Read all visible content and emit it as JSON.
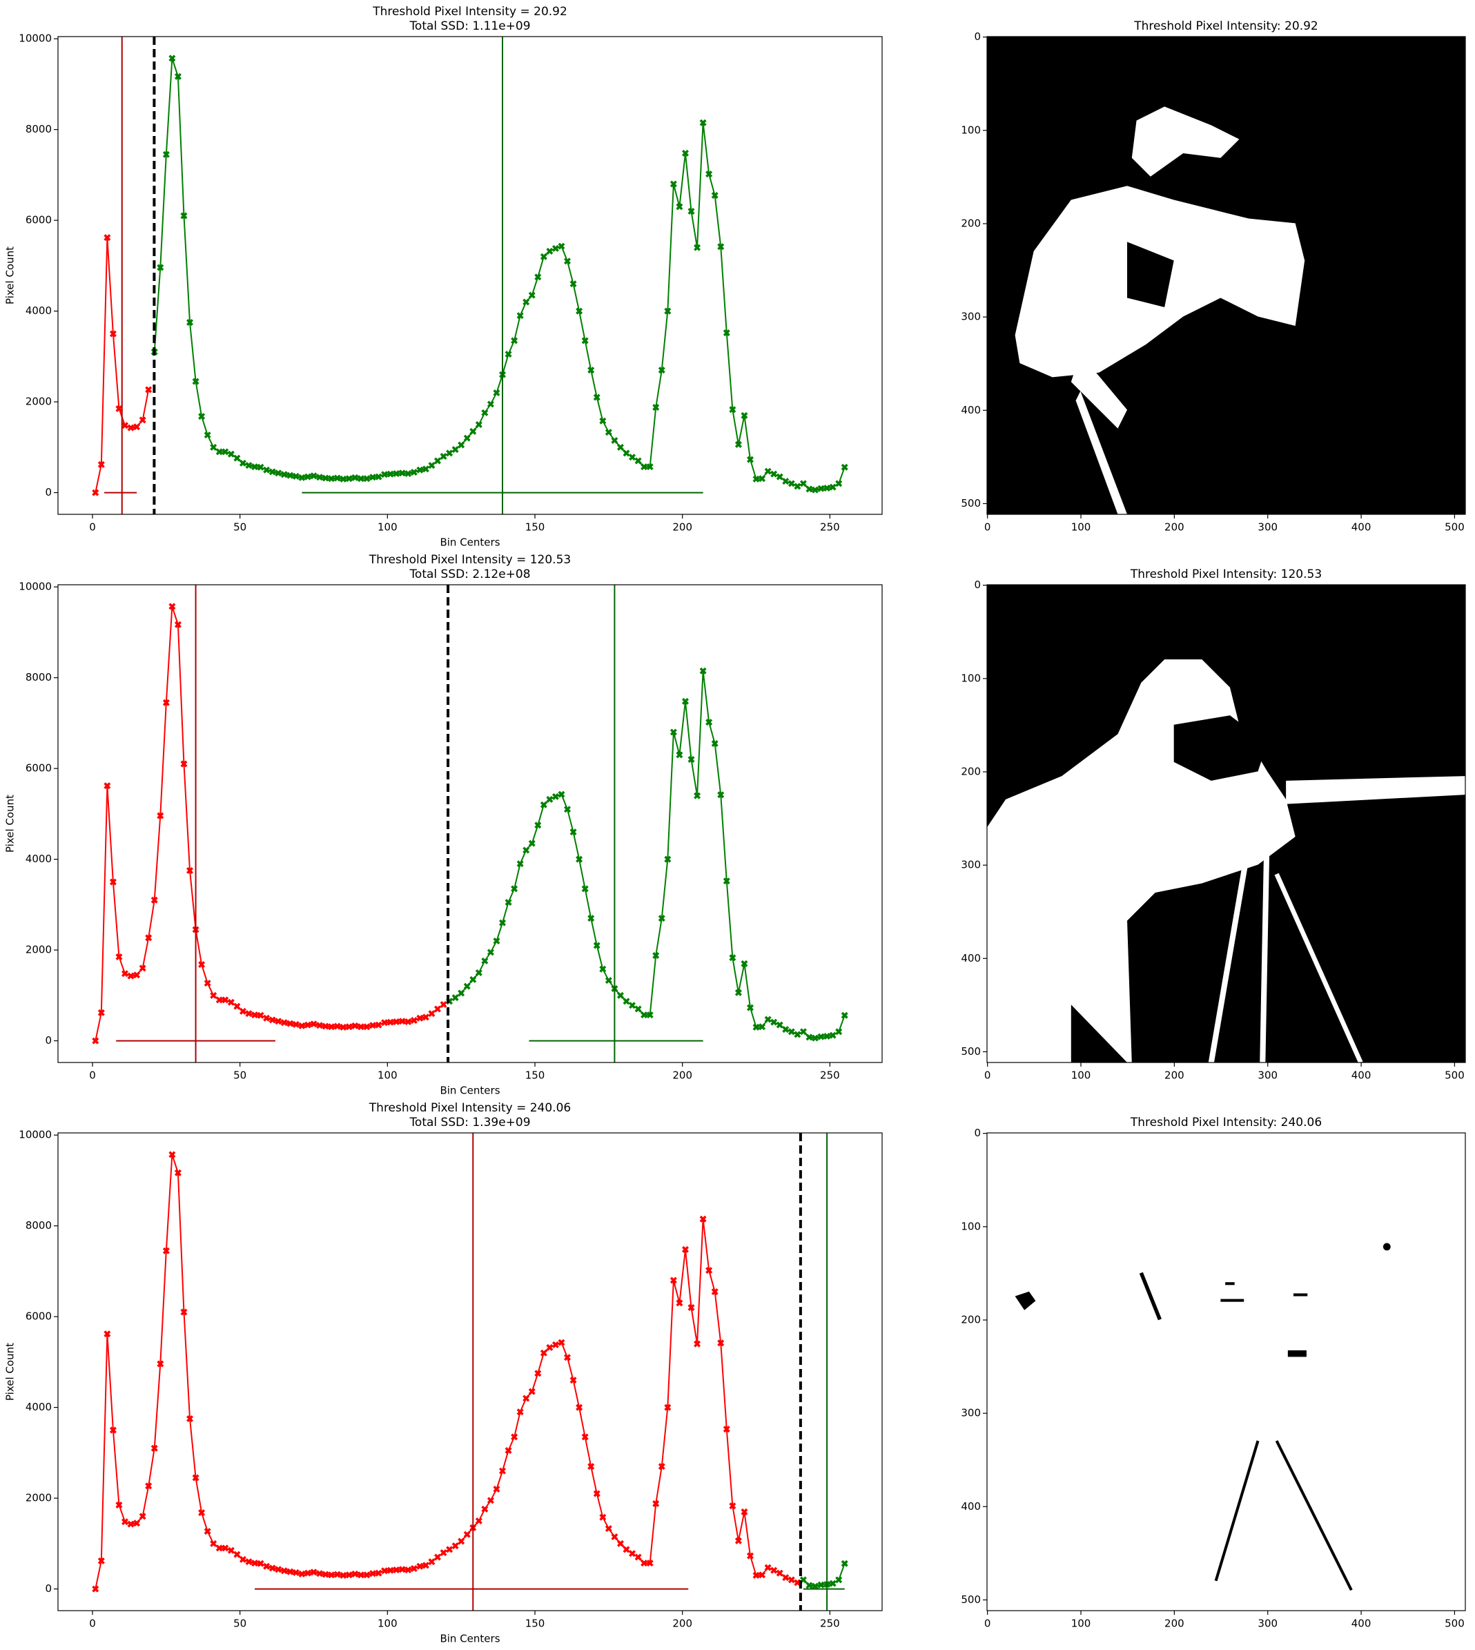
{
  "chart_data": [
    {
      "type": "line",
      "title": "Threshold Pixel Intensity = 20.92",
      "subtitle": "Total SSD: 1.11e+09",
      "xlabel": "Bin Centers",
      "ylabel": "Pixel Count",
      "x": [
        1,
        3,
        5,
        7,
        9,
        11,
        13,
        15,
        17,
        19,
        21,
        23,
        25,
        27,
        29,
        31,
        33,
        35,
        37,
        39,
        41,
        43,
        45,
        47,
        49,
        51,
        53,
        55,
        57,
        59,
        61,
        63,
        65,
        67,
        69,
        71,
        73,
        75,
        77,
        79,
        81,
        83,
        85,
        87,
        89,
        91,
        93,
        95,
        97,
        99,
        101,
        103,
        105,
        107,
        109,
        111,
        113,
        115,
        117,
        119,
        121,
        123,
        125,
        127,
        129,
        131,
        133,
        135,
        137,
        139,
        141,
        143,
        145,
        147,
        149,
        151,
        153,
        155,
        157,
        159,
        161,
        163,
        165,
        167,
        169,
        171,
        173,
        175,
        177,
        179,
        181,
        183,
        185,
        187,
        189,
        191,
        193,
        195,
        197,
        199,
        201,
        203,
        205,
        207,
        209,
        211,
        213,
        215,
        217,
        219,
        221,
        223,
        225,
        227,
        229,
        231,
        233,
        235,
        237,
        239,
        241,
        243,
        245,
        247,
        249,
        251,
        253,
        255
      ],
      "values": [
        0,
        620,
        5620,
        3500,
        1850,
        1480,
        1430,
        1450,
        1600,
        2270,
        3100,
        4960,
        7450,
        9570,
        9170,
        6100,
        3750,
        2450,
        1680,
        1270,
        1000,
        900,
        900,
        850,
        760,
        650,
        600,
        570,
        560,
        500,
        460,
        430,
        400,
        380,
        360,
        330,
        350,
        370,
        340,
        320,
        310,
        320,
        300,
        310,
        330,
        310,
        310,
        340,
        350,
        400,
        410,
        420,
        430,
        420,
        450,
        500,
        520,
        600,
        700,
        800,
        870,
        950,
        1050,
        1200,
        1350,
        1500,
        1760,
        1950,
        2200,
        2600,
        3050,
        3350,
        3900,
        4200,
        4350,
        4750,
        5200,
        5320,
        5380,
        5430,
        5100,
        4600,
        4000,
        3350,
        2700,
        2100,
        1580,
        1330,
        1150,
        1000,
        870,
        780,
        700,
        570,
        570,
        1880,
        2700,
        4000,
        6800,
        6300,
        7480,
        6200,
        5400,
        8150,
        7020,
        6550,
        5420,
        3520,
        1830,
        1060,
        1700,
        730,
        300,
        310,
        470,
        410,
        350,
        250,
        200,
        140,
        200,
        80,
        60,
        90,
        100,
        120,
        200,
        560
      ],
      "threshold": 20.92,
      "below_color": "#ff0000",
      "above_color": "#008000",
      "classes": [
        {
          "color": "#b00000",
          "mean": 10,
          "span": [
            4,
            15
          ]
        },
        {
          "color": "#006400",
          "mean": 139,
          "span": [
            71,
            207
          ]
        }
      ],
      "xlim": [
        -11.7,
        267.7
      ],
      "ylim": [
        -478,
        10048
      ],
      "xticks": [
        0,
        50,
        100,
        150,
        200,
        250
      ],
      "yticks": [
        0,
        2000,
        4000,
        6000,
        8000,
        10000
      ]
    },
    {
      "type": "image",
      "title": "Threshold Pixel Intensity: 20.92",
      "xlim": [
        -0.5,
        511.5
      ],
      "ylim": [
        511.5,
        -0.5
      ],
      "xticks": [
        0,
        100,
        200,
        300,
        400,
        500
      ],
      "yticks": [
        0,
        100,
        200,
        300,
        400,
        500
      ]
    },
    {
      "type": "line",
      "title": "Threshold Pixel Intensity = 120.53",
      "subtitle": "Total SSD: 2.12e+08",
      "xlabel": "Bin Centers",
      "ylabel": "Pixel Count",
      "x": [
        1,
        3,
        5,
        7,
        9,
        11,
        13,
        15,
        17,
        19,
        21,
        23,
        25,
        27,
        29,
        31,
        33,
        35,
        37,
        39,
        41,
        43,
        45,
        47,
        49,
        51,
        53,
        55,
        57,
        59,
        61,
        63,
        65,
        67,
        69,
        71,
        73,
        75,
        77,
        79,
        81,
        83,
        85,
        87,
        89,
        91,
        93,
        95,
        97,
        99,
        101,
        103,
        105,
        107,
        109,
        111,
        113,
        115,
        117,
        119,
        121,
        123,
        125,
        127,
        129,
        131,
        133,
        135,
        137,
        139,
        141,
        143,
        145,
        147,
        149,
        151,
        153,
        155,
        157,
        159,
        161,
        163,
        165,
        167,
        169,
        171,
        173,
        175,
        177,
        179,
        181,
        183,
        185,
        187,
        189,
        191,
        193,
        195,
        197,
        199,
        201,
        203,
        205,
        207,
        209,
        211,
        213,
        215,
        217,
        219,
        221,
        223,
        225,
        227,
        229,
        231,
        233,
        235,
        237,
        239,
        241,
        243,
        245,
        247,
        249,
        251,
        253,
        255
      ],
      "values": [
        0,
        620,
        5620,
        3500,
        1850,
        1480,
        1430,
        1450,
        1600,
        2270,
        3100,
        4960,
        7450,
        9570,
        9170,
        6100,
        3750,
        2450,
        1680,
        1270,
        1000,
        900,
        900,
        850,
        760,
        650,
        600,
        570,
        560,
        500,
        460,
        430,
        400,
        380,
        360,
        330,
        350,
        370,
        340,
        320,
        310,
        320,
        300,
        310,
        330,
        310,
        310,
        340,
        350,
        400,
        410,
        420,
        430,
        420,
        450,
        500,
        520,
        600,
        700,
        800,
        870,
        950,
        1050,
        1200,
        1350,
        1500,
        1760,
        1950,
        2200,
        2600,
        3050,
        3350,
        3900,
        4200,
        4350,
        4750,
        5200,
        5320,
        5380,
        5430,
        5100,
        4600,
        4000,
        3350,
        2700,
        2100,
        1580,
        1330,
        1150,
        1000,
        870,
        780,
        700,
        570,
        570,
        1880,
        2700,
        4000,
        6800,
        6300,
        7480,
        6200,
        5400,
        8150,
        7020,
        6550,
        5420,
        3520,
        1830,
        1060,
        1700,
        730,
        300,
        310,
        470,
        410,
        350,
        250,
        200,
        140,
        200,
        80,
        60,
        90,
        100,
        120,
        200,
        560
      ],
      "threshold": 120.53,
      "below_color": "#ff0000",
      "above_color": "#008000",
      "classes": [
        {
          "color": "#b00000",
          "mean": 35,
          "span": [
            8,
            62
          ]
        },
        {
          "color": "#006400",
          "mean": 177,
          "span": [
            148,
            207
          ]
        }
      ],
      "xlim": [
        -11.7,
        267.7
      ],
      "ylim": [
        -478,
        10048
      ],
      "xticks": [
        0,
        50,
        100,
        150,
        200,
        250
      ],
      "yticks": [
        0,
        2000,
        4000,
        6000,
        8000,
        10000
      ]
    },
    {
      "type": "image",
      "title": "Threshold Pixel Intensity: 120.53",
      "xlim": [
        -0.5,
        511.5
      ],
      "ylim": [
        511.5,
        -0.5
      ],
      "xticks": [
        0,
        100,
        200,
        300,
        400,
        500
      ],
      "yticks": [
        0,
        100,
        200,
        300,
        400,
        500
      ]
    },
    {
      "type": "line",
      "title": "Threshold Pixel Intensity = 240.06",
      "subtitle": "Total SSD: 1.39e+09",
      "xlabel": "Bin Centers",
      "ylabel": "Pixel Count",
      "x": [
        1,
        3,
        5,
        7,
        9,
        11,
        13,
        15,
        17,
        19,
        21,
        23,
        25,
        27,
        29,
        31,
        33,
        35,
        37,
        39,
        41,
        43,
        45,
        47,
        49,
        51,
        53,
        55,
        57,
        59,
        61,
        63,
        65,
        67,
        69,
        71,
        73,
        75,
        77,
        79,
        81,
        83,
        85,
        87,
        89,
        91,
        93,
        95,
        97,
        99,
        101,
        103,
        105,
        107,
        109,
        111,
        113,
        115,
        117,
        119,
        121,
        123,
        125,
        127,
        129,
        131,
        133,
        135,
        137,
        139,
        141,
        143,
        145,
        147,
        149,
        151,
        153,
        155,
        157,
        159,
        161,
        163,
        165,
        167,
        169,
        171,
        173,
        175,
        177,
        179,
        181,
        183,
        185,
        187,
        189,
        191,
        193,
        195,
        197,
        199,
        201,
        203,
        205,
        207,
        209,
        211,
        213,
        215,
        217,
        219,
        221,
        223,
        225,
        227,
        229,
        231,
        233,
        235,
        237,
        239,
        241,
        243,
        245,
        247,
        249,
        251,
        253,
        255
      ],
      "values": [
        0,
        620,
        5620,
        3500,
        1850,
        1480,
        1430,
        1450,
        1600,
        2270,
        3100,
        4960,
        7450,
        9570,
        9170,
        6100,
        3750,
        2450,
        1680,
        1270,
        1000,
        900,
        900,
        850,
        760,
        650,
        600,
        570,
        560,
        500,
        460,
        430,
        400,
        380,
        360,
        330,
        350,
        370,
        340,
        320,
        310,
        320,
        300,
        310,
        330,
        310,
        310,
        340,
        350,
        400,
        410,
        420,
        430,
        420,
        450,
        500,
        520,
        600,
        700,
        800,
        870,
        950,
        1050,
        1200,
        1350,
        1500,
        1760,
        1950,
        2200,
        2600,
        3050,
        3350,
        3900,
        4200,
        4350,
        4750,
        5200,
        5320,
        5380,
        5430,
        5100,
        4600,
        4000,
        3350,
        2700,
        2100,
        1580,
        1330,
        1150,
        1000,
        870,
        780,
        700,
        570,
        570,
        1880,
        2700,
        4000,
        6800,
        6300,
        7480,
        6200,
        5400,
        8150,
        7020,
        6550,
        5420,
        3520,
        1830,
        1060,
        1700,
        730,
        300,
        310,
        470,
        410,
        350,
        250,
        200,
        140,
        200,
        80,
        60,
        90,
        100,
        120,
        200,
        560
      ],
      "threshold": 240.06,
      "below_color": "#ff0000",
      "above_color": "#008000",
      "classes": [
        {
          "color": "#b00000",
          "mean": 129,
          "span": [
            55,
            202
          ]
        },
        {
          "color": "#006400",
          "mean": 249,
          "span": [
            241,
            255
          ]
        }
      ],
      "xlim": [
        -11.7,
        267.7
      ],
      "ylim": [
        -478,
        10048
      ],
      "xticks": [
        0,
        50,
        100,
        150,
        200,
        250
      ],
      "yticks": [
        0,
        2000,
        4000,
        6000,
        8000,
        10000
      ]
    },
    {
      "type": "image",
      "title": "Threshold Pixel Intensity: 240.06",
      "xlim": [
        -0.5,
        511.5
      ],
      "ylim": [
        511.5,
        -0.5
      ],
      "xticks": [
        0,
        100,
        200,
        300,
        400,
        500
      ],
      "yticks": [
        0,
        100,
        200,
        300,
        400,
        500
      ]
    }
  ]
}
